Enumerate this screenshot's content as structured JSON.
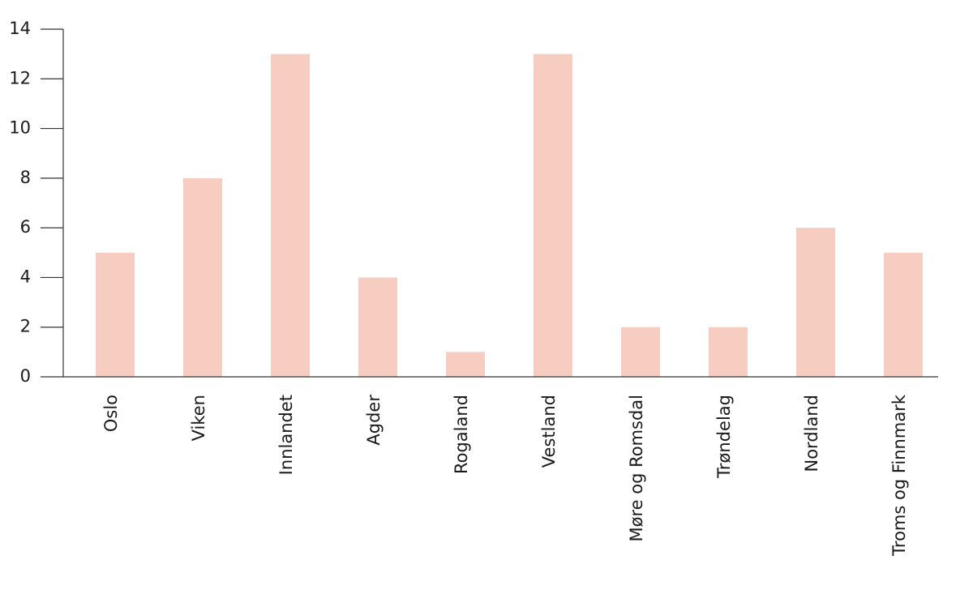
{
  "chart_data": {
    "type": "bar",
    "categories": [
      "Oslo",
      "Viken",
      "Innlandet",
      "Agder",
      "Rogaland",
      "Vestland",
      "Møre og Romsdal",
      "Trøndelag",
      "Nordland",
      "Troms og Finnmark"
    ],
    "values": [
      5,
      8,
      13,
      4,
      1,
      13,
      2,
      2,
      6,
      5
    ],
    "color": "#f7cdc2",
    "ylim": [
      0,
      14
    ],
    "yticks": [
      0,
      2,
      4,
      6,
      8,
      10,
      12,
      14
    ],
    "grid": false
  }
}
